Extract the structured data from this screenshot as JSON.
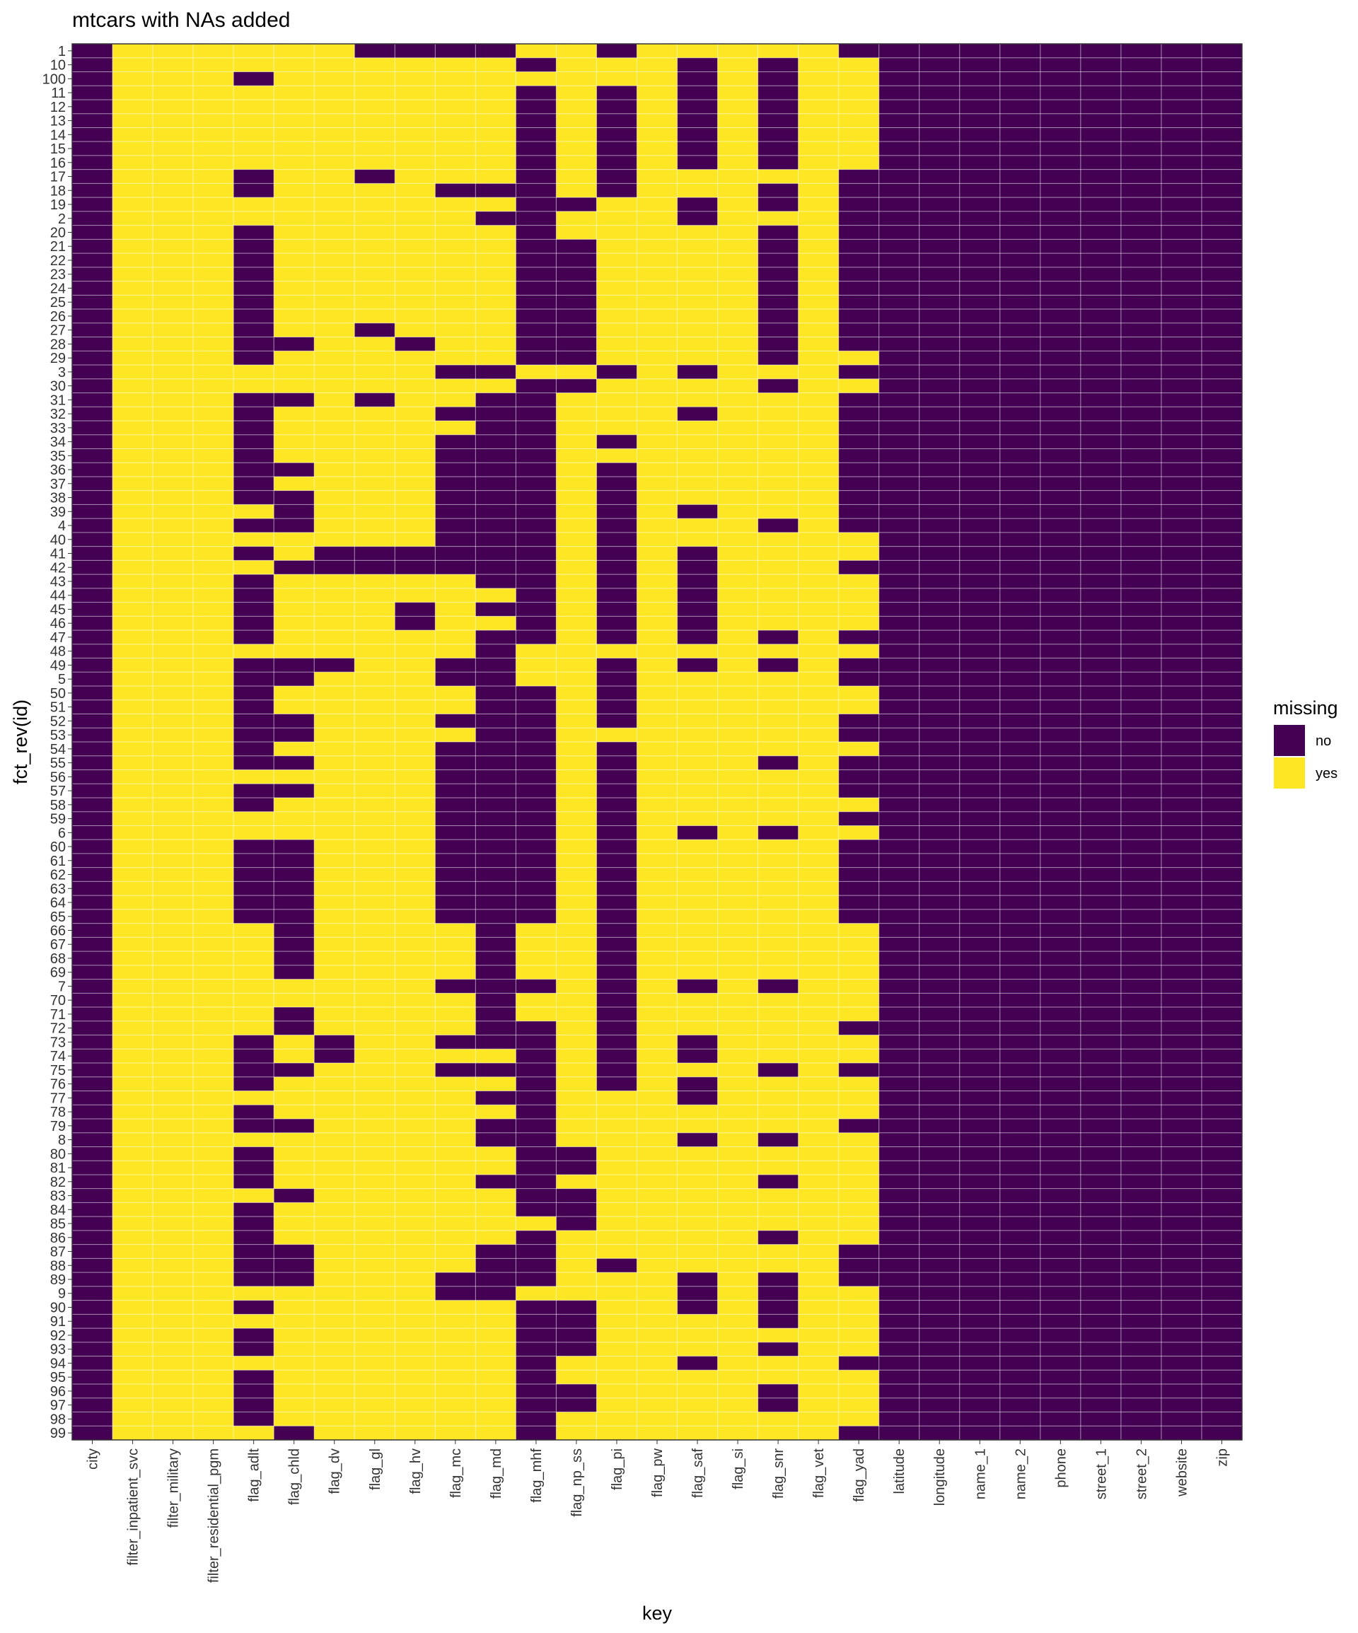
{
  "chart_data": {
    "type": "heatmap",
    "title": "mtcars with NAs added",
    "xlabel": "key",
    "ylabel": "fct_rev(id)",
    "legend": {
      "title": "missing",
      "position": "right",
      "items": [
        {
          "label": "no",
          "color": "#440154"
        },
        {
          "label": "yes",
          "color": "#FDE725"
        }
      ]
    },
    "columns": [
      "city",
      "filter_inpatient_svc",
      "filter_military",
      "filter_residential_pgm",
      "flag_adlt",
      "flag_chld",
      "flag_dv",
      "flag_gl",
      "flag_hv",
      "flag_mc",
      "flag_md",
      "flag_mhf",
      "flag_np_ss",
      "flag_pi",
      "flag_pw",
      "flag_saf",
      "flag_si",
      "flag_snr",
      "flag_vet",
      "flag_yad",
      "latitude",
      "longitude",
      "name_1",
      "name_2",
      "phone",
      "street_1",
      "street_2",
      "website",
      "zip"
    ],
    "rows": [
      "1",
      "10",
      "100",
      "11",
      "12",
      "13",
      "14",
      "15",
      "16",
      "17",
      "18",
      "19",
      "2",
      "20",
      "21",
      "22",
      "23",
      "24",
      "25",
      "26",
      "27",
      "28",
      "29",
      "3",
      "30",
      "31",
      "32",
      "33",
      "34",
      "35",
      "36",
      "37",
      "38",
      "39",
      "4",
      "40",
      "41",
      "42",
      "43",
      "44",
      "45",
      "46",
      "47",
      "48",
      "49",
      "5",
      "50",
      "51",
      "52",
      "53",
      "54",
      "55",
      "56",
      "57",
      "58",
      "59",
      "6",
      "60",
      "61",
      "62",
      "63",
      "64",
      "65",
      "66",
      "67",
      "68",
      "69",
      "7",
      "70",
      "71",
      "72",
      "73",
      "74",
      "75",
      "76",
      "77",
      "78",
      "79",
      "8",
      "80",
      "81",
      "82",
      "83",
      "84",
      "85",
      "86",
      "87",
      "88",
      "89",
      "9",
      "90",
      "91",
      "92",
      "93",
      "94",
      "95",
      "96",
      "97",
      "98",
      "99"
    ],
    "fixed_columns": {
      "always_no": [
        "city",
        "latitude",
        "longitude",
        "name_1",
        "name_2",
        "phone",
        "street_1",
        "street_2",
        "website",
        "zip"
      ],
      "always_yes": [
        "filter_inpatient_svc",
        "filter_military",
        "filter_residential_pgm",
        "flag_pw",
        "flag_si",
        "flag_vet"
      ]
    },
    "no_rows_by_column": {
      "flag_adlt": [
        "100",
        "17",
        "18",
        "20",
        "21",
        "22",
        "23",
        "24",
        "25",
        "26",
        "27",
        "28",
        "29",
        "31",
        "32",
        "33",
        "34",
        "35",
        "36",
        "37",
        "38",
        "4",
        "41",
        "43",
        "44",
        "45",
        "46",
        "47",
        "49",
        "5",
        "50",
        "51",
        "52",
        "53",
        "54",
        "55",
        "57",
        "58",
        "60",
        "61",
        "62",
        "63",
        "64",
        "65",
        "73",
        "74",
        "75",
        "76",
        "78",
        "79",
        "80",
        "81",
        "82",
        "84",
        "85",
        "86",
        "87",
        "88",
        "89",
        "90",
        "92",
        "93",
        "95",
        "96",
        "97",
        "98"
      ],
      "flag_chld": [
        "28",
        "31",
        "36",
        "38",
        "39",
        "4",
        "42",
        "49",
        "5",
        "52",
        "53",
        "55",
        "57",
        "60",
        "61",
        "62",
        "63",
        "64",
        "65",
        "66",
        "67",
        "68",
        "69",
        "71",
        "72",
        "75",
        "79",
        "83",
        "87",
        "88",
        "89",
        "99"
      ],
      "flag_dv": [
        "41",
        "42",
        "49",
        "73",
        "74"
      ],
      "flag_gl": [
        "1",
        "17",
        "27",
        "31",
        "41",
        "42"
      ],
      "flag_hv": [
        "1",
        "28",
        "41",
        "42",
        "45",
        "46"
      ],
      "flag_mc": [
        "1",
        "18",
        "3",
        "32",
        "34",
        "35",
        "36",
        "37",
        "38",
        "39",
        "4",
        "40",
        "41",
        "42",
        "49",
        "5",
        "52",
        "54",
        "55",
        "56",
        "57",
        "58",
        "59",
        "6",
        "60",
        "61",
        "62",
        "63",
        "64",
        "65",
        "7",
        "73",
        "75",
        "89",
        "9"
      ],
      "flag_md": [
        "1",
        "18",
        "2",
        "3",
        "31",
        "32",
        "33",
        "34",
        "35",
        "36",
        "37",
        "38",
        "39",
        "4",
        "40",
        "41",
        "42",
        "43",
        "45",
        "47",
        "48",
        "49",
        "5",
        "50",
        "51",
        "52",
        "53",
        "54",
        "55",
        "56",
        "57",
        "58",
        "59",
        "6",
        "60",
        "61",
        "62",
        "63",
        "64",
        "65",
        "66",
        "67",
        "68",
        "69",
        "7",
        "70",
        "71",
        "72",
        "73",
        "75",
        "77",
        "79",
        "8",
        "82",
        "87",
        "88",
        "89",
        "9"
      ],
      "flag_mhf": [
        "10",
        "11",
        "12",
        "13",
        "14",
        "15",
        "16",
        "17",
        "18",
        "19",
        "2",
        "20",
        "21",
        "22",
        "23",
        "24",
        "25",
        "26",
        "27",
        "28",
        "29",
        "30",
        "31",
        "32",
        "33",
        "34",
        "35",
        "36",
        "37",
        "38",
        "39",
        "4",
        "40",
        "41",
        "42",
        "43",
        "44",
        "45",
        "46",
        "47",
        "50",
        "51",
        "52",
        "53",
        "54",
        "55",
        "56",
        "57",
        "58",
        "59",
        "6",
        "60",
        "61",
        "62",
        "63",
        "64",
        "65",
        "7",
        "72",
        "73",
        "74",
        "75",
        "76",
        "77",
        "78",
        "79",
        "8",
        "80",
        "81",
        "82",
        "83",
        "84",
        "86",
        "87",
        "88",
        "89",
        "90",
        "91",
        "92",
        "93",
        "94",
        "95",
        "96",
        "97",
        "98",
        "99"
      ],
      "flag_np_ss": [
        "19",
        "21",
        "22",
        "23",
        "24",
        "25",
        "26",
        "27",
        "28",
        "29",
        "30",
        "80",
        "81",
        "83",
        "84",
        "85",
        "90",
        "91",
        "92",
        "93",
        "96",
        "97"
      ],
      "flag_pi": [
        "1",
        "11",
        "12",
        "13",
        "14",
        "15",
        "16",
        "17",
        "18",
        "3",
        "34",
        "36",
        "37",
        "38",
        "39",
        "4",
        "40",
        "41",
        "42",
        "43",
        "44",
        "45",
        "46",
        "47",
        "49",
        "5",
        "50",
        "51",
        "52",
        "54",
        "55",
        "56",
        "57",
        "58",
        "59",
        "6",
        "60",
        "61",
        "62",
        "63",
        "64",
        "65",
        "66",
        "67",
        "68",
        "69",
        "7",
        "70",
        "71",
        "72",
        "73",
        "74",
        "75",
        "76",
        "88"
      ],
      "flag_saf": [
        "10",
        "100",
        "11",
        "12",
        "13",
        "14",
        "15",
        "16",
        "19",
        "2",
        "3",
        "32",
        "39",
        "41",
        "42",
        "43",
        "44",
        "45",
        "46",
        "47",
        "49",
        "6",
        "7",
        "73",
        "74",
        "76",
        "77",
        "8",
        "89",
        "9",
        "90",
        "94"
      ],
      "flag_snr": [
        "10",
        "100",
        "11",
        "12",
        "13",
        "14",
        "15",
        "16",
        "18",
        "19",
        "20",
        "21",
        "22",
        "23",
        "24",
        "25",
        "26",
        "27",
        "28",
        "29",
        "30",
        "4",
        "47",
        "49",
        "55",
        "6",
        "7",
        "75",
        "8",
        "82",
        "86",
        "89",
        "9",
        "90",
        "91",
        "93",
        "96",
        "97"
      ],
      "flag_yad": [
        "1",
        "17",
        "18",
        "19",
        "2",
        "20",
        "21",
        "22",
        "23",
        "24",
        "25",
        "26",
        "27",
        "28",
        "3",
        "31",
        "32",
        "33",
        "34",
        "35",
        "36",
        "37",
        "38",
        "39",
        "4",
        "42",
        "47",
        "49",
        "5",
        "52",
        "53",
        "55",
        "56",
        "57",
        "59",
        "60",
        "61",
        "62",
        "63",
        "64",
        "65",
        "72",
        "75",
        "79",
        "87",
        "88",
        "89",
        "94",
        "99"
      ]
    }
  }
}
